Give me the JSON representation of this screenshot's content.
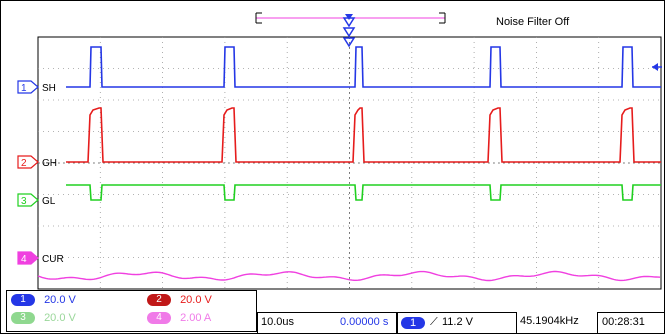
{
  "status": {
    "noise_filter": "Noise Filter Off"
  },
  "channels": [
    {
      "id": "1",
      "label": "SH",
      "color": "#2437e6",
      "scale": "20.0 V"
    },
    {
      "id": "2",
      "label": "GH",
      "color": "#e61c1c",
      "scale": "20.0 V"
    },
    {
      "id": "3",
      "label": "GL",
      "color": "#20d020",
      "scale": "20.0 V"
    },
    {
      "id": "4",
      "label": "CUR",
      "color": "#f040e0",
      "scale": "2.00 A"
    }
  ],
  "timebase": {
    "scale": "10.0us",
    "position": "0.00000 s"
  },
  "trigger": {
    "source": "1",
    "level": "11.2 V",
    "slope_glyph": "⟋"
  },
  "measurement": {
    "frequency": "45.1904kHz"
  },
  "clock": {
    "time": "00:28:31"
  }
}
